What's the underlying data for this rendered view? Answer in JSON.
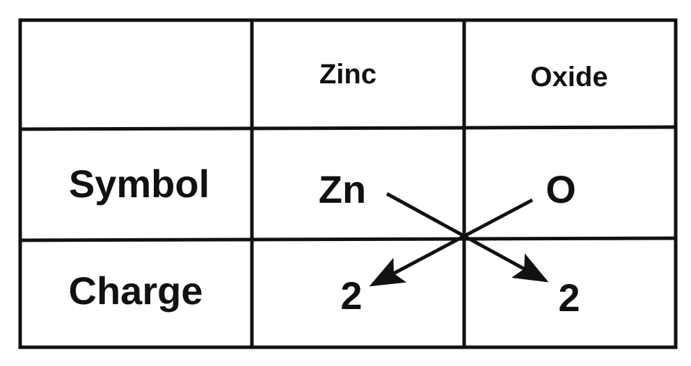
{
  "table": {
    "column_headers": [
      "",
      "Zinc",
      "Oxide"
    ],
    "rows": [
      {
        "label": "Symbol",
        "cells": [
          "Zn",
          "O"
        ]
      },
      {
        "label": "Charge",
        "cells": [
          "2",
          "2"
        ]
      }
    ]
  },
  "colors": {
    "lines": "#111111",
    "background": "#ffffff"
  }
}
